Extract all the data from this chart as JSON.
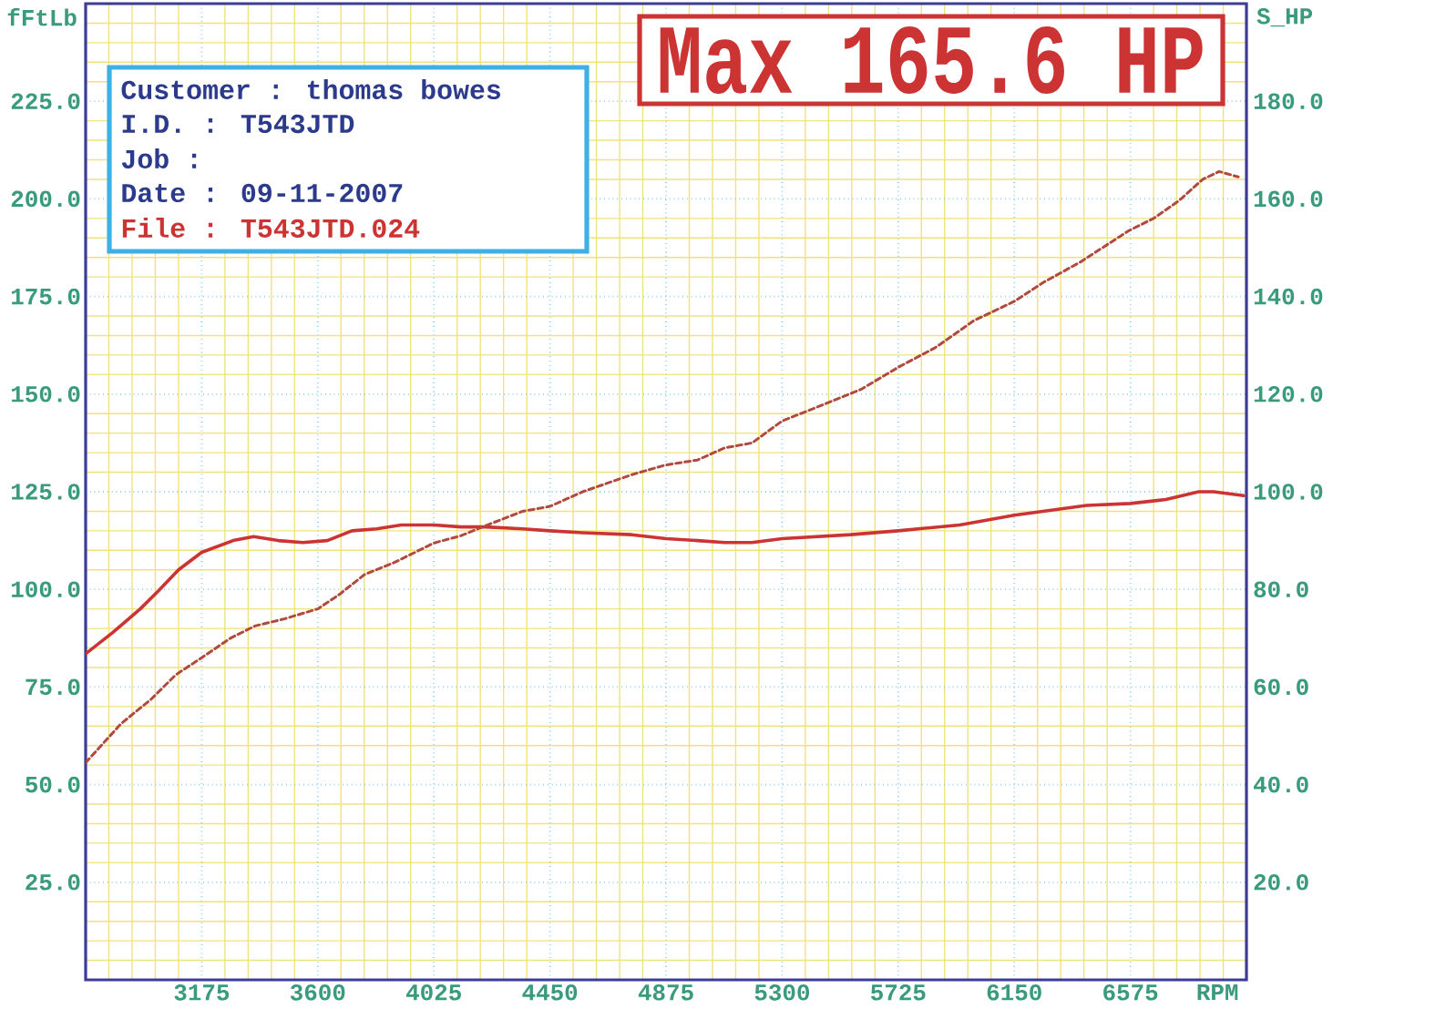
{
  "chart_data": {
    "type": "line",
    "xlabel": "RPM",
    "ylabel": "fFtLb",
    "y2label": "S_HP",
    "annotations": [
      "Max 165.6 HP",
      "Customer : thomas bowes",
      "I.D. : T543JTD",
      "Job :",
      "Date : 09-11-2007",
      "File : T543JTD.024"
    ],
    "xlim": [
      2750,
      7000
    ],
    "xticks": [
      {
        "value": 2835,
        "label": null
      },
      {
        "value": 2920,
        "label": null
      },
      {
        "value": 3005,
        "label": null
      },
      {
        "value": 3090,
        "label": null
      },
      3175,
      {
        "value": 3260,
        "label": null
      },
      {
        "value": 3345,
        "label": null
      },
      {
        "value": 3430,
        "label": null
      },
      {
        "value": 3515,
        "label": null
      },
      3600,
      {
        "value": 3685,
        "label": null
      },
      {
        "value": 3770,
        "label": null
      },
      {
        "value": 3855,
        "label": null
      },
      {
        "value": 3940,
        "label": null
      },
      4025,
      {
        "value": 4110,
        "label": null
      },
      {
        "value": 4195,
        "label": null
      },
      {
        "value": 4280,
        "label": null
      },
      {
        "value": 4365,
        "label": null
      },
      4450,
      {
        "value": 4535,
        "label": null
      },
      {
        "value": 4620,
        "label": null
      },
      {
        "value": 4705,
        "label": null
      },
      {
        "value": 4790,
        "label": null
      },
      4875,
      {
        "value": 4960,
        "label": null
      },
      {
        "value": 5045,
        "label": null
      },
      {
        "value": 5130,
        "label": null
      },
      {
        "value": 5215,
        "label": null
      },
      5300,
      {
        "value": 5385,
        "label": null
      },
      {
        "value": 5470,
        "label": null
      },
      {
        "value": 5555,
        "label": null
      },
      {
        "value": 5640,
        "label": null
      },
      5725,
      {
        "value": 5810,
        "label": null
      },
      {
        "value": 5895,
        "label": null
      },
      {
        "value": 5980,
        "label": null
      },
      {
        "value": 6065,
        "label": null
      },
      6150,
      {
        "value": 6235,
        "label": null
      },
      {
        "value": 6320,
        "label": null
      },
      {
        "value": 6405,
        "label": null
      },
      {
        "value": 6490,
        "label": null
      },
      6575,
      {
        "value": 6660,
        "label": null
      },
      {
        "value": 6745,
        "label": null
      },
      {
        "value": 6830,
        "label": null
      },
      {
        "value": 6915,
        "label": null
      }
    ],
    "ylim": [
      0,
      250
    ],
    "yticks": [
      {
        "value": 5,
        "label": null
      },
      {
        "value": 10,
        "label": null
      },
      {
        "value": 15,
        "label": null
      },
      {
        "value": 20,
        "label": null
      },
      {
        "value": 25,
        "label": "25.0"
      },
      {
        "value": 30,
        "label": null
      },
      {
        "value": 35,
        "label": null
      },
      {
        "value": 40,
        "label": null
      },
      {
        "value": 45,
        "label": null
      },
      {
        "value": 50,
        "label": "50.0"
      },
      {
        "value": 55,
        "label": null
      },
      {
        "value": 60,
        "label": null
      },
      {
        "value": 65,
        "label": null
      },
      {
        "value": 70,
        "label": null
      },
      {
        "value": 75,
        "label": "75.0"
      },
      {
        "value": 80,
        "label": null
      },
      {
        "value": 85,
        "label": null
      },
      {
        "value": 90,
        "label": null
      },
      {
        "value": 95,
        "label": null
      },
      {
        "value": 100,
        "label": "100.0"
      },
      {
        "value": 105,
        "label": null
      },
      {
        "value": 110,
        "label": null
      },
      {
        "value": 115,
        "label": null
      },
      {
        "value": 120,
        "label": null
      },
      {
        "value": 125,
        "label": "125.0"
      },
      {
        "value": 130,
        "label": null
      },
      {
        "value": 135,
        "label": null
      },
      {
        "value": 140,
        "label": null
      },
      {
        "value": 145,
        "label": null
      },
      {
        "value": 150,
        "label": "150.0"
      },
      {
        "value": 155,
        "label": null
      },
      {
        "value": 160,
        "label": null
      },
      {
        "value": 165,
        "label": null
      },
      {
        "value": 170,
        "label": null
      },
      {
        "value": 175,
        "label": "175.0"
      },
      {
        "value": 180,
        "label": null
      },
      {
        "value": 185,
        "label": null
      },
      {
        "value": 190,
        "label": null
      },
      {
        "value": 195,
        "label": null
      },
      {
        "value": 200,
        "label": "200.0"
      },
      {
        "value": 205,
        "label": null
      },
      {
        "value": 210,
        "label": null
      },
      {
        "value": 215,
        "label": null
      },
      {
        "value": 220,
        "label": null
      },
      {
        "value": 225,
        "label": "225.0"
      },
      {
        "value": 230,
        "label": null
      },
      {
        "value": 235,
        "label": null
      },
      {
        "value": 240,
        "label": null
      },
      {
        "value": 245,
        "label": null
      }
    ],
    "y2lim": [
      0,
      200
    ],
    "y2ticks": [
      {
        "value": 20,
        "label": "20.0"
      },
      {
        "value": 40,
        "label": "40.0"
      },
      {
        "value": 60,
        "label": "60.0"
      },
      {
        "value": 80,
        "label": "80.0"
      },
      {
        "value": 100,
        "label": "100.0"
      },
      {
        "value": 120,
        "label": "120.0"
      },
      {
        "value": 140,
        "label": "140.0"
      },
      {
        "value": 160,
        "label": "160.0"
      },
      {
        "value": 180,
        "label": "180.0"
      }
    ],
    "grid": true,
    "marker": "none",
    "series": [
      {
        "color": "#cc3333",
        "line_style": "solid",
        "x": [
          2750,
          2850,
          2950,
          3015,
          3090,
          3175,
          3290,
          3365,
          3455,
          3545,
          3635,
          3725,
          3815,
          3905,
          4025,
          4125,
          4215,
          4350,
          4450,
          4570,
          4750,
          4875,
          4990,
          5090,
          5190,
          5300,
          5550,
          5725,
          5950,
          6150,
          6415,
          6575,
          6705,
          6825,
          6880,
          6990
        ],
        "values": [
          83.5,
          89,
          95,
          99.5,
          105,
          109.5,
          112.5,
          113.5,
          112.5,
          112,
          112.5,
          115,
          115.5,
          116.5,
          116.5,
          116,
          116,
          115.5,
          115,
          114.5,
          114,
          113,
          112.5,
          112,
          112,
          113,
          114,
          115,
          116.5,
          119,
          121.5,
          122,
          123,
          125,
          125,
          124
        ]
      },
      {
        "color": "#b04a3c",
        "line_style": "dashed",
        "axis": "y2",
        "x": [
          2750,
          2880,
          2990,
          3080,
          3175,
          3280,
          3370,
          3480,
          3600,
          3680,
          3770,
          3880,
          4025,
          4125,
          4235,
          4350,
          4450,
          4570,
          4750,
          4875,
          4990,
          5090,
          5190,
          5300,
          5435,
          5590,
          5725,
          5860,
          5950,
          6000,
          6150,
          6260,
          6390,
          6570,
          6660,
          6750,
          6840,
          6900,
          6970
        ],
        "values": [
          44.5,
          52.5,
          57.5,
          62.5,
          66,
          70,
          72.5,
          74,
          76,
          79,
          83,
          85.5,
          89.5,
          91,
          93.5,
          96,
          97,
          100,
          103.5,
          105.5,
          106.5,
          109,
          110,
          114.5,
          117.5,
          121,
          125.5,
          129.5,
          133,
          135,
          139,
          143,
          147,
          153.5,
          156,
          159.5,
          164,
          165.6,
          164.5
        ]
      }
    ]
  }
}
